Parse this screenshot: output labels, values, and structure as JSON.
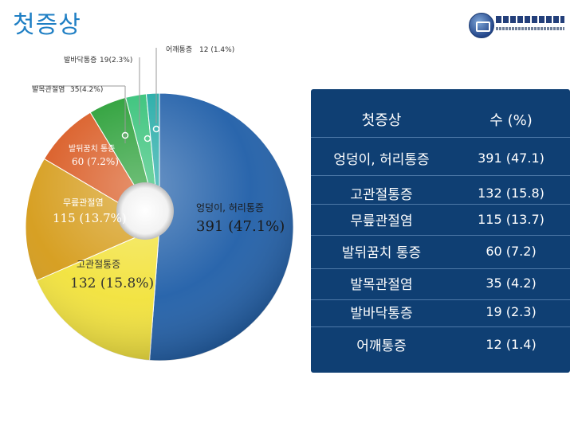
{
  "title": "첫증상",
  "logo_text": "한양대학교류마티스병원",
  "chart_data": {
    "type": "pie",
    "title": "",
    "slices": [
      {
        "label": "엉덩이, 허리통증",
        "value": 391,
        "percent": 47.1,
        "color": "#1f5ea8",
        "label_value": "391 (47.1%)"
      },
      {
        "label": "고관절통증",
        "value": 132,
        "percent": 15.8,
        "color": "#f2e23a",
        "label_value": "132 (15.8%)"
      },
      {
        "label": "무릎관절염",
        "value": 115,
        "percent": 13.7,
        "color": "#d59b18",
        "label_value": "115 (13.7%)"
      },
      {
        "label": "발뒤꿈치 통증",
        "value": 60,
        "percent": 7.2,
        "color": "#d8541a",
        "label_value": "60 (7.2%)"
      },
      {
        "label": "발목관절염",
        "value": 35,
        "percent": 4.2,
        "color": "#1e9a2c",
        "label_value": "35(4.2%)"
      },
      {
        "label": "발바닥통증",
        "value": 19,
        "percent": 2.3,
        "color": "#2cbf72",
        "label_value": "19(2.3%)"
      },
      {
        "label": "어깨통증",
        "value": 12,
        "percent": 1.4,
        "color": "#1aa7a3",
        "label_value": "12 (1.4%)"
      }
    ]
  },
  "table": {
    "headers": [
      "첫증상",
      "수 (%)"
    ],
    "rows": [
      [
        "엉덩이, 허리통증",
        "391 (47.1)"
      ],
      [
        "고관절통증",
        "132 (15.8)"
      ],
      [
        "무릎관절염",
        "115 (13.7)"
      ],
      [
        "발뒤꿈치 통증",
        "60 (7.2)"
      ],
      [
        "발목관절염",
        "35 (4.2)"
      ],
      [
        "발바닥통증",
        "19 (2.3)"
      ],
      [
        "어깨통증",
        "12 (1.4)"
      ]
    ]
  }
}
